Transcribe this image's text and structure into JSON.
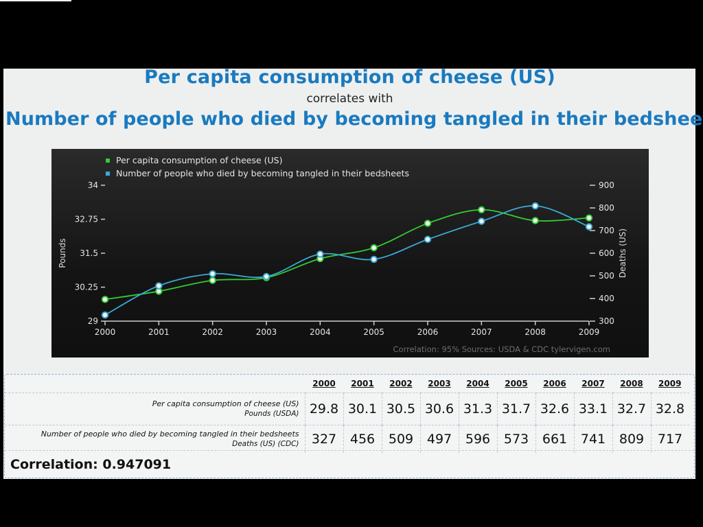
{
  "header": {
    "title1": "Per capita consumption of cheese (US)",
    "subtitle": "correlates with",
    "title2": "Number of people who died by becoming tangled in their bedsheets"
  },
  "chart_data": {
    "type": "line",
    "x": [
      "2000",
      "2001",
      "2002",
      "2003",
      "2004",
      "2005",
      "2006",
      "2007",
      "2008",
      "2009"
    ],
    "series": [
      {
        "name": "Per capita consumption of cheese (US)",
        "axis": "left",
        "color": "#33cc33",
        "values": [
          29.8,
          30.1,
          30.5,
          30.6,
          31.3,
          31.7,
          32.6,
          33.1,
          32.7,
          32.8
        ]
      },
      {
        "name": "Number of people who died by becoming tangled in their bedsheets",
        "axis": "right",
        "color": "#3aa9d6",
        "values": [
          327,
          456,
          509,
          497,
          596,
          573,
          661,
          741,
          809,
          717
        ]
      }
    ],
    "ylabel_left": "Pounds",
    "ylabel_right": "Deaths (US)",
    "ylim_left": [
      29,
      34
    ],
    "yticks_left": [
      "29",
      "30.25",
      "31.5",
      "32.75",
      "34"
    ],
    "ylim_right": [
      300,
      900
    ],
    "yticks_right": [
      "300",
      "400",
      "500",
      "600",
      "700",
      "800",
      "900"
    ],
    "legend": "top-left",
    "footer": "Correlation: 95%     Sources: USDA & CDC    tylervigen.com"
  },
  "table": {
    "years": [
      "2000",
      "2001",
      "2002",
      "2003",
      "2004",
      "2005",
      "2006",
      "2007",
      "2008",
      "2009"
    ],
    "row1_label": "Per capita consumption of cheese (US)",
    "row1_sub": "Pounds (USDA)",
    "row1": [
      "29.8",
      "30.1",
      "30.5",
      "30.6",
      "31.3",
      "31.7",
      "32.6",
      "33.1",
      "32.7",
      "32.8"
    ],
    "row2_label": "Number of people who died by becoming tangled in their bedsheets",
    "row2_sub": "Deaths (US) (CDC)",
    "row2": [
      "327",
      "456",
      "509",
      "497",
      "596",
      "573",
      "661",
      "741",
      "809",
      "717"
    ],
    "correlation": "Correlation: 0.947091"
  }
}
